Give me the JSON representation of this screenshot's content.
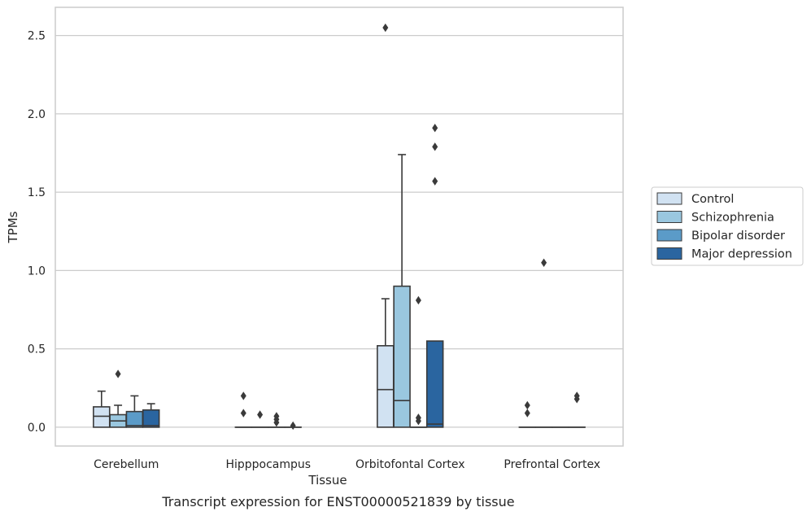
{
  "chart_data": {
    "type": "boxplot",
    "title": "",
    "caption": "Transcript expression for ENST00000521839 by tissue",
    "xlabel": "Tissue",
    "ylabel": "TPMs",
    "ylim": [
      -0.12,
      2.68
    ],
    "yticks": [
      0.0,
      0.5,
      1.0,
      1.5,
      2.0,
      2.5
    ],
    "ytick_labels": [
      "0.0",
      "0.5",
      "1.0",
      "1.5",
      "2.0",
      "2.5"
    ],
    "categories": [
      "Cerebellum",
      "Hipppocampus",
      "Orbitofontal Cortex",
      "Prefrontal Cortex"
    ],
    "grid": "horizontal",
    "legend_position": "right",
    "series": [
      {
        "name": "Control",
        "color": "#d1e2f2",
        "boxes": [
          {
            "whislo": 0.0,
            "q1": 0.0,
            "med": 0.07,
            "q3": 0.13,
            "whishi": 0.23,
            "fliers": []
          },
          {
            "whislo": 0.0,
            "q1": 0.0,
            "med": 0.0,
            "q3": 0.0,
            "whishi": 0.0,
            "fliers": [
              0.09,
              0.2
            ]
          },
          {
            "whislo": 0.0,
            "q1": 0.0,
            "med": 0.24,
            "q3": 0.52,
            "whishi": 0.82,
            "fliers": [
              2.55
            ]
          },
          {
            "whislo": 0.0,
            "q1": 0.0,
            "med": 0.0,
            "q3": 0.0,
            "whishi": 0.0,
            "fliers": [
              0.09,
              0.14
            ]
          }
        ]
      },
      {
        "name": "Schizophrenia",
        "color": "#9ac7df",
        "boxes": [
          {
            "whislo": 0.0,
            "q1": 0.0,
            "med": 0.04,
            "q3": 0.08,
            "whishi": 0.14,
            "fliers": [
              0.34
            ]
          },
          {
            "whislo": 0.0,
            "q1": 0.0,
            "med": 0.0,
            "q3": 0.0,
            "whishi": 0.0,
            "fliers": [
              0.08
            ]
          },
          {
            "whislo": 0.0,
            "q1": 0.0,
            "med": 0.17,
            "q3": 0.9,
            "whishi": 1.74,
            "fliers": []
          },
          {
            "whislo": 0.0,
            "q1": 0.0,
            "med": 0.0,
            "q3": 0.0,
            "whishi": 0.0,
            "fliers": [
              1.05
            ]
          }
        ]
      },
      {
        "name": "Bipolar disorder",
        "color": "#5b9bc8",
        "boxes": [
          {
            "whislo": 0.0,
            "q1": 0.0,
            "med": 0.01,
            "q3": 0.1,
            "whishi": 0.2,
            "fliers": []
          },
          {
            "whislo": 0.0,
            "q1": 0.0,
            "med": 0.0,
            "q3": 0.0,
            "whishi": 0.0,
            "fliers": [
              0.03,
              0.05,
              0.07
            ]
          },
          {
            "whislo": 0.0,
            "q1": 0.0,
            "med": 0.0,
            "q3": 0.0,
            "whishi": 0.0,
            "fliers": [
              0.04,
              0.06,
              0.81
            ]
          },
          {
            "whislo": 0.0,
            "q1": 0.0,
            "med": 0.0,
            "q3": 0.0,
            "whishi": 0.0,
            "fliers": []
          }
        ]
      },
      {
        "name": "Major depression",
        "color": "#2a65a0",
        "boxes": [
          {
            "whislo": 0.0,
            "q1": 0.0,
            "med": 0.01,
            "q3": 0.11,
            "whishi": 0.15,
            "fliers": []
          },
          {
            "whislo": 0.0,
            "q1": 0.0,
            "med": 0.0,
            "q3": 0.0,
            "whishi": 0.0,
            "fliers": [
              0.01
            ]
          },
          {
            "whislo": 0.0,
            "q1": 0.0,
            "med": 0.02,
            "q3": 0.55,
            "whishi": 0.55,
            "fliers": [
              1.57,
              1.79,
              1.91
            ]
          },
          {
            "whislo": 0.0,
            "q1": 0.0,
            "med": 0.0,
            "q3": 0.0,
            "whishi": 0.0,
            "fliers": [
              0.18,
              0.2
            ]
          }
        ]
      }
    ]
  }
}
